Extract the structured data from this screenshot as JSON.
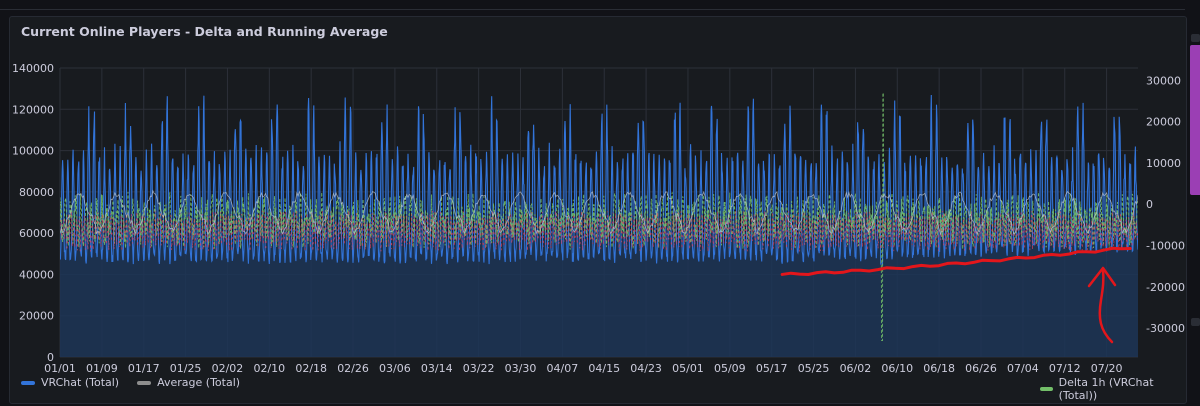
{
  "panel": {
    "title": "Current Online Players - Delta and Running Average"
  },
  "legend": [
    {
      "label": "VRChat (Total)",
      "color": "#3274d9"
    },
    {
      "label": "Average (Total)",
      "color": "#8e8e8e"
    },
    {
      "label": "Delta 1h (VRChat (Total))",
      "color": "#73bf69"
    }
  ],
  "colors": {
    "players": "#3274d9",
    "players_fill": "#1d3557",
    "average": "#c7d0d9",
    "delta": "#73bf69",
    "delta_negative": "#e0405a",
    "annotation": "#e3161b",
    "grid": "#2c3039",
    "axis_text": "#ccccdc"
  },
  "chart_data": {
    "type": "line",
    "title": "Current Online Players - Delta and Running Average",
    "left_axis": {
      "min": 0,
      "max": 140000,
      "ticks": [
        "0",
        "20000",
        "40000",
        "60000",
        "80000",
        "100000",
        "120000",
        "140000"
      ]
    },
    "right_axis": {
      "min": -37000,
      "max": 33000,
      "ticks": [
        "-30000",
        "-20000",
        "-10000",
        "0",
        "10000",
        "20000",
        "30000"
      ]
    },
    "x_ticks": [
      "01/01",
      "01/09",
      "01/17",
      "01/25",
      "02/02",
      "02/10",
      "02/18",
      "02/26",
      "03/06",
      "03/14",
      "03/22",
      "03/30",
      "04/07",
      "04/15",
      "04/23",
      "05/01",
      "05/09",
      "05/17",
      "05/25",
      "06/02",
      "06/10",
      "06/18",
      "06/26",
      "07/04",
      "07/12",
      "07/20"
    ],
    "days": 206,
    "series": [
      {
        "name": "VRChat (Total)",
        "axis": "left",
        "approx_daily_min": [
          45000,
          42000,
          55000
        ],
        "approx_daily_max": [
          118000,
          100000,
          128000
        ]
      },
      {
        "name": "Average (Total)",
        "axis": "left",
        "approx_range": [
          60000,
          82000
        ]
      },
      {
        "name": "Delta 1h (VRChat (Total))",
        "axis": "right",
        "approx_range": [
          -12000,
          5000
        ],
        "spike": {
          "date": "06/07",
          "max": 27000,
          "min": -33000
        }
      }
    ],
    "annotation": {
      "type": "hand-drawn red trend line and arrow",
      "start_y": 40000,
      "end_y": 53000,
      "from": "05/19",
      "to": "07/24"
    }
  }
}
